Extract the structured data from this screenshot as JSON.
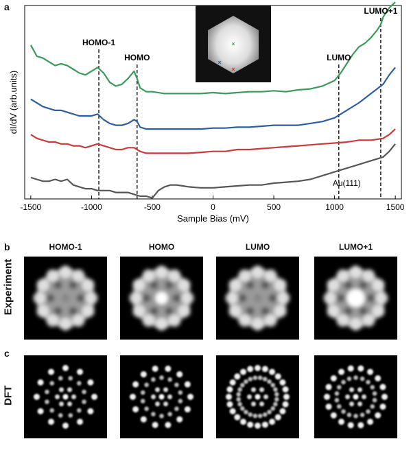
{
  "panel_a": {
    "letter": "a",
    "chart_data": {
      "type": "line",
      "xlabel": "Sample Bias (mV)",
      "ylabel": "dI/dV (arb.units)",
      "xlim": [
        -1550,
        1550
      ],
      "xticks": [
        "-1500",
        "-1000",
        "-500",
        "0",
        "500",
        "1000",
        "1500"
      ],
      "xtick_values": [
        -1500,
        -1000,
        -500,
        0,
        500,
        1000,
        1500
      ],
      "ylim": [
        0,
        10
      ],
      "annotations": [
        {
          "label": "HOMO-1",
          "x": -940
        },
        {
          "label": "HOMO",
          "x": -625
        },
        {
          "label": "LUMO",
          "x": 1035
        },
        {
          "label": "LUMO+1",
          "x": 1380
        }
      ],
      "series_label_au": "Au(111)",
      "series": [
        {
          "color": "#3a9a5c",
          "x": [
            -1500,
            -1450,
            -1400,
            -1350,
            -1300,
            -1250,
            -1200,
            -1150,
            -1100,
            -1050,
            -1000,
            -950,
            -900,
            -850,
            -800,
            -750,
            -700,
            -650,
            -625,
            -600,
            -550,
            -500,
            -400,
            -300,
            -200,
            -100,
            0,
            100,
            200,
            300,
            400,
            500,
            600,
            700,
            800,
            900,
            1000,
            1050,
            1100,
            1150,
            1200,
            1250,
            1300,
            1350,
            1380,
            1400,
            1450,
            1500
          ],
          "y": [
            8.1,
            7.5,
            7.4,
            7.2,
            7.0,
            7.1,
            7.0,
            6.8,
            6.6,
            6.5,
            6.7,
            6.9,
            6.6,
            6.1,
            5.9,
            6.0,
            6.3,
            6.7,
            6.3,
            5.8,
            5.6,
            5.6,
            5.5,
            5.5,
            5.5,
            5.5,
            5.55,
            5.5,
            5.55,
            5.6,
            5.6,
            5.65,
            5.6,
            5.7,
            5.75,
            5.9,
            6.2,
            6.6,
            7.1,
            7.6,
            8.0,
            8.2,
            8.5,
            8.9,
            9.2,
            9.6,
            10.1,
            10.4
          ]
        },
        {
          "color": "#2d5e9e",
          "x": [
            -1500,
            -1450,
            -1400,
            -1350,
            -1300,
            -1250,
            -1200,
            -1150,
            -1100,
            -1050,
            -1000,
            -950,
            -900,
            -850,
            -800,
            -750,
            -700,
            -650,
            -625,
            -600,
            -550,
            -500,
            -400,
            -300,
            -200,
            -100,
            0,
            100,
            200,
            300,
            400,
            500,
            600,
            700,
            800,
            900,
            1000,
            1100,
            1200,
            1300,
            1400,
            1450,
            1500
          ],
          "y": [
            5.2,
            5.0,
            4.8,
            4.7,
            4.6,
            4.6,
            4.5,
            4.4,
            4.3,
            4.3,
            4.3,
            4.4,
            4.1,
            3.9,
            3.8,
            3.8,
            3.9,
            4.1,
            4.0,
            3.7,
            3.6,
            3.6,
            3.6,
            3.6,
            3.6,
            3.6,
            3.65,
            3.65,
            3.7,
            3.7,
            3.75,
            3.8,
            3.8,
            3.8,
            3.9,
            4.0,
            4.2,
            4.6,
            5.0,
            5.5,
            6.0,
            6.5,
            6.9
          ]
        },
        {
          "color": "#c83b3b",
          "x": [
            -1500,
            -1450,
            -1400,
            -1350,
            -1300,
            -1250,
            -1200,
            -1150,
            -1100,
            -1050,
            -1000,
            -950,
            -900,
            -850,
            -800,
            -750,
            -700,
            -650,
            -600,
            -550,
            -500,
            -400,
            -300,
            -200,
            -100,
            0,
            100,
            200,
            300,
            400,
            500,
            600,
            700,
            800,
            900,
            1000,
            1100,
            1200,
            1300,
            1400,
            1450,
            1500
          ],
          "y": [
            3.3,
            3.1,
            3.0,
            2.9,
            2.9,
            2.8,
            2.8,
            2.7,
            2.7,
            2.6,
            2.7,
            2.8,
            2.7,
            2.6,
            2.5,
            2.5,
            2.6,
            2.6,
            2.4,
            2.3,
            2.3,
            2.3,
            2.3,
            2.3,
            2.35,
            2.4,
            2.4,
            2.5,
            2.5,
            2.55,
            2.6,
            2.65,
            2.7,
            2.75,
            2.8,
            2.85,
            2.9,
            3.0,
            3.0,
            3.1,
            3.3,
            3.6
          ]
        },
        {
          "color": "#555555",
          "x": [
            -1500,
            -1450,
            -1400,
            -1350,
            -1300,
            -1250,
            -1200,
            -1150,
            -1100,
            -1050,
            -1000,
            -950,
            -900,
            -850,
            -800,
            -750,
            -700,
            -650,
            -600,
            -550,
            -500,
            -450,
            -400,
            -350,
            -300,
            -250,
            -200,
            -100,
            0,
            100,
            200,
            300,
            400,
            500,
            600,
            700,
            800,
            900,
            1000,
            1100,
            1200,
            1300,
            1400,
            1450,
            1500
          ],
          "y": [
            1.0,
            0.9,
            0.8,
            0.8,
            0.9,
            0.8,
            0.9,
            0.6,
            0.5,
            0.4,
            0.4,
            0.3,
            0.3,
            0.3,
            0.2,
            0.2,
            0.2,
            0.1,
            0.0,
            0.0,
            -0.1,
            0.3,
            0.5,
            0.6,
            0.6,
            0.55,
            0.5,
            0.45,
            0.45,
            0.5,
            0.55,
            0.6,
            0.6,
            0.7,
            0.75,
            0.8,
            0.9,
            1.1,
            1.3,
            1.5,
            1.7,
            1.9,
            2.1,
            2.4,
            2.8
          ]
        }
      ]
    }
  },
  "panel_b": {
    "letter": "b",
    "row_label": "Experiment",
    "columns": [
      "HOMO-1",
      "HOMO",
      "LUMO",
      "LUMO+1"
    ]
  },
  "panel_c": {
    "letter": "c",
    "row_label": "DFT"
  }
}
